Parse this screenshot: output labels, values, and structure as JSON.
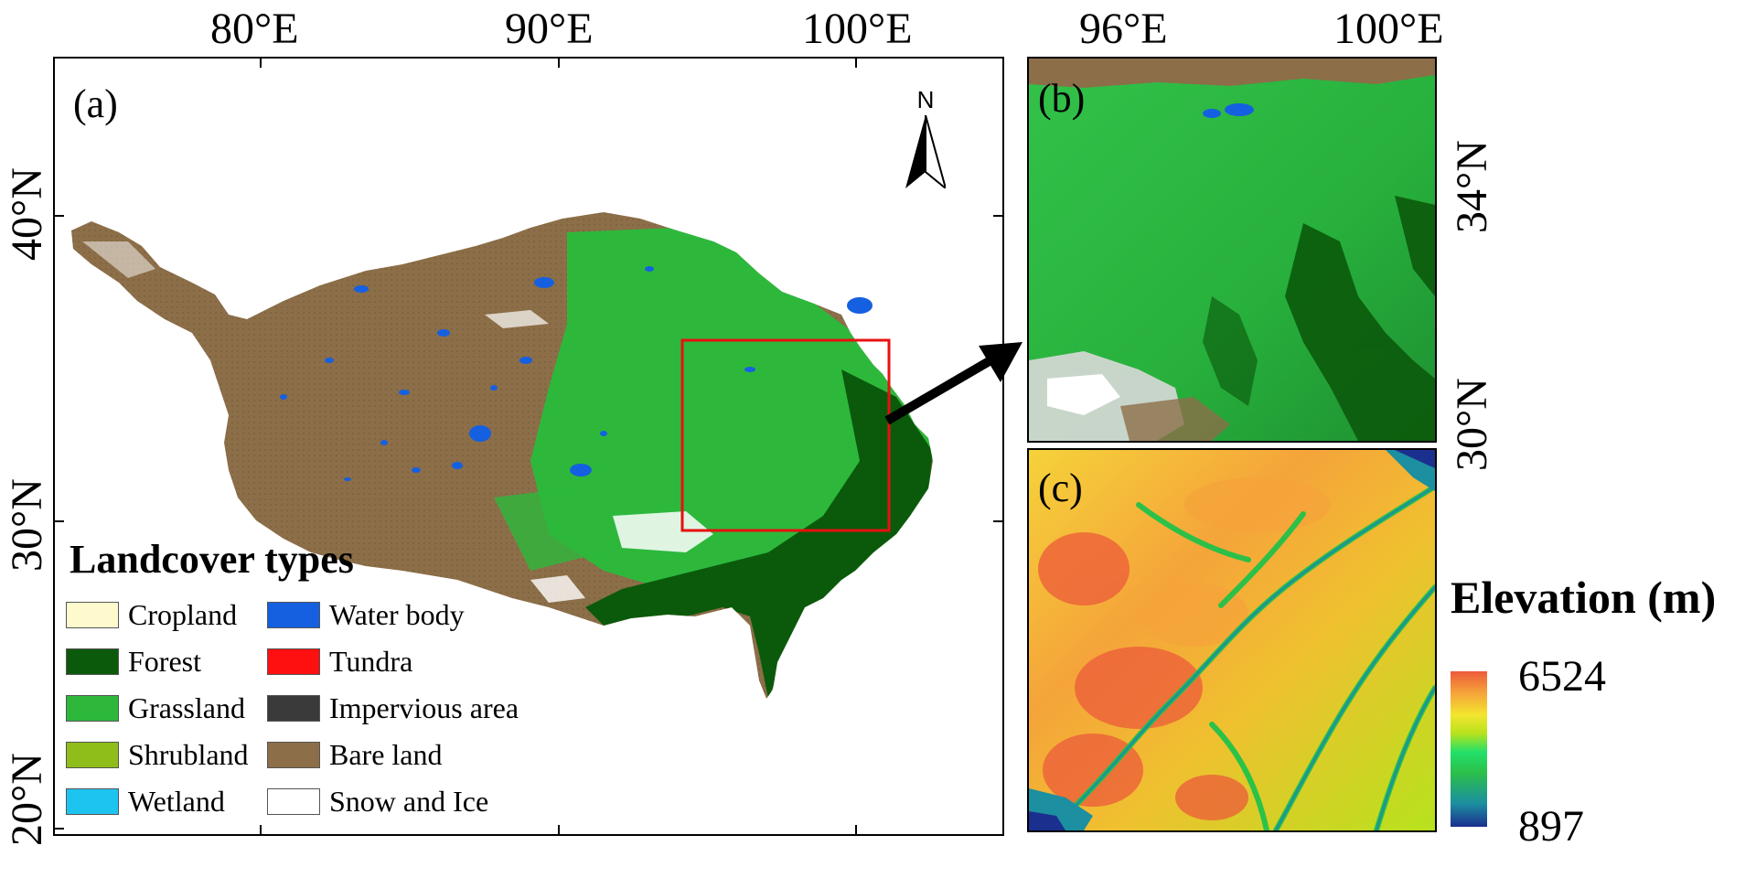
{
  "axes": {
    "top_a": [
      "80°E",
      "90°E",
      "100°E"
    ],
    "top_b": [
      "96°E",
      "100°E"
    ],
    "left_a": [
      "40°N",
      "30°N",
      "20°N"
    ],
    "right_b": [
      "34°N",
      "30°N"
    ]
  },
  "panels": {
    "a": {
      "label": "(a)",
      "north_arrow": "N"
    },
    "b": {
      "label": "(b)"
    },
    "c": {
      "label": "(c)"
    }
  },
  "legend": {
    "title": "Landcover types",
    "items": [
      {
        "label": "Cropland",
        "color": "#FFFACD"
      },
      {
        "label": "Forest",
        "color": "#0B5A0B"
      },
      {
        "label": "Grassland",
        "color": "#2DB83C"
      },
      {
        "label": "Shrubland",
        "color": "#8FBE1A"
      },
      {
        "label": "Wetland",
        "color": "#1EC4F0"
      },
      {
        "label": "Water body",
        "color": "#1560E0"
      },
      {
        "label": "Tundra",
        "color": "#FF1010"
      },
      {
        "label": "Impervious area",
        "color": "#3A3A3A"
      },
      {
        "label": "Bare land",
        "color": "#8C6E48"
      },
      {
        "label": "Snow and Ice",
        "color": "#FFFFFF"
      }
    ]
  },
  "elevation": {
    "title": "Elevation (m)",
    "max": "6524",
    "min": "897",
    "ramp": [
      "#1B2F8F",
      "#1C8FA0",
      "#2BC04A",
      "#22E06A",
      "#B7E21C",
      "#F4E52E",
      "#F5A43A",
      "#EC5B3A"
    ]
  }
}
